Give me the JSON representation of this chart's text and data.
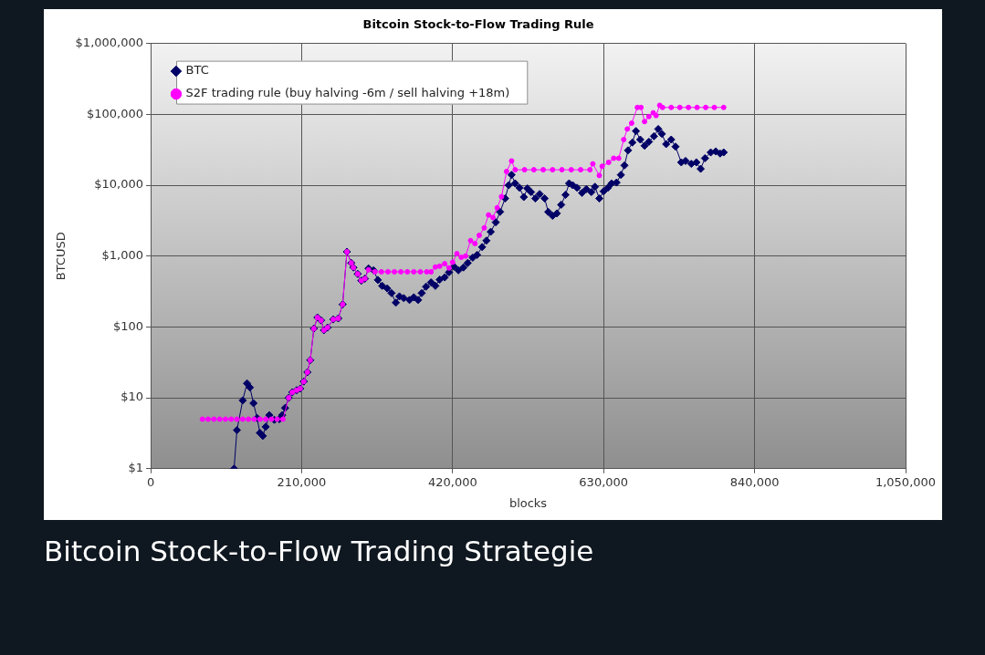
{
  "chart_data": {
    "type": "line",
    "title": "Bitcoin Stock-to-Flow Trading Rule",
    "xlabel": "blocks",
    "ylabel": "BTCUSD",
    "annotations": [
      "Bitcoin Stock-to-Flow Trading Strategie"
    ],
    "log": "y",
    "grid": true,
    "legend": "top left",
    "line_style": "solid",
    "xlim": [
      0,
      1050000
    ],
    "xticks": [
      0,
      {
        "value": 210000,
        "label": "210,000"
      },
      {
        "value": 420000,
        "label": "420,000"
      },
      {
        "value": 630000,
        "label": "630,000"
      },
      {
        "value": 840000,
        "label": "840,000"
      },
      {
        "value": 1050000,
        "label": "1,050,000"
      }
    ],
    "ylim": [
      1,
      1000000
    ],
    "yticks": [
      {
        "value": 1,
        "label": "$1"
      },
      {
        "value": 10,
        "label": "$10"
      },
      {
        "value": 100,
        "label": "$100"
      },
      {
        "value": 1000,
        "label": "$1,000"
      },
      {
        "value": 10000,
        "label": "$10,000"
      },
      {
        "value": 100000,
        "label": "$100,000"
      },
      {
        "value": 1000000,
        "label": "$1,000,000"
      }
    ],
    "series": [
      {
        "name": "BTC",
        "color": "#000066",
        "marker": "diamond",
        "x": [
          116000,
          120000,
          128000,
          134000,
          138000,
          143000,
          148000,
          152000,
          156000,
          160000,
          165000,
          172000,
          179000,
          183000,
          187000,
          192000,
          197000,
          203000,
          208000,
          213000,
          218000,
          222000,
          227000,
          232000,
          237000,
          241000,
          246000,
          254000,
          261000,
          267000,
          273000,
          279000,
          282000,
          288000,
          293000,
          298000,
          303000,
          310000,
          316000,
          322000,
          329000,
          335000,
          341000,
          346000,
          352000,
          360000,
          366000,
          372000,
          377000,
          383000,
          390000,
          396000,
          402000,
          409000,
          415000,
          422000,
          428000,
          435000,
          441000,
          448000,
          454000,
          461000,
          467000,
          473000,
          480000,
          486000,
          493000,
          498000,
          502000,
          507000,
          513000,
          519000,
          524000,
          529000,
          535000,
          541000,
          548000,
          553000,
          559000,
          565000,
          571000,
          577000,
          582000,
          587000,
          593000,
          600000,
          606000,
          613000,
          618000,
          624000,
          630000,
          636000,
          641000,
          648000,
          654000,
          659000,
          664000,
          670000,
          675000,
          681000,
          687000,
          693000,
          700000,
          706000,
          711000,
          717000,
          724000,
          730000,
          738000,
          744000,
          752000,
          759000,
          765000,
          771000,
          779000,
          786000,
          792000,
          797000
        ],
        "values": [
          1,
          3.5,
          9.2,
          16,
          14,
          8.4,
          5.2,
          3.2,
          2.9,
          3.9,
          5.7,
          4.9,
          5,
          5.7,
          7.2,
          10,
          12,
          12.8,
          13.5,
          17,
          23,
          34,
          95,
          136,
          124,
          90,
          98,
          128,
          132,
          208,
          1150,
          800,
          690,
          560,
          450,
          480,
          670,
          630,
          460,
          380,
          350,
          300,
          220,
          270,
          255,
          240,
          262,
          240,
          300,
          370,
          425,
          380,
          465,
          500,
          590,
          710,
          630,
          690,
          800,
          950,
          1040,
          1340,
          1650,
          2200,
          3000,
          4200,
          6500,
          10000,
          14000,
          10600,
          9200,
          6800,
          9000,
          8000,
          6500,
          7500,
          6500,
          4200,
          3700,
          4000,
          5300,
          7300,
          10600,
          10000,
          9200,
          7800,
          8800,
          8000,
          9500,
          6500,
          8200,
          9200,
          10600,
          10900,
          14000,
          19000,
          31000,
          40000,
          58000,
          44000,
          36000,
          41000,
          49000,
          62000,
          53000,
          38000,
          44000,
          35000,
          21000,
          22000,
          20000,
          21000,
          17000,
          24000,
          29000,
          30000,
          28000,
          29000
        ]
      },
      {
        "name": "S2F trading rule (buy halving -6m / sell halving +18m)",
        "color": "#ff00ff",
        "marker": "circle",
        "x": [
          72000,
          80000,
          88000,
          96000,
          104000,
          112000,
          120000,
          128000,
          136000,
          144000,
          152000,
          160000,
          168000,
          176000,
          184000,
          192000,
          197000,
          203000,
          208000,
          213000,
          218000,
          222000,
          227000,
          232000,
          237000,
          241000,
          246000,
          254000,
          261000,
          267000,
          273000,
          279000,
          282000,
          288000,
          293000,
          298000,
          303000,
          312000,
          321000,
          330000,
          339000,
          348000,
          357000,
          366000,
          375000,
          384000,
          390000,
          396000,
          402000,
          409000,
          415000,
          420000,
          426000,
          432000,
          438000,
          445000,
          451000,
          457000,
          464000,
          470000,
          476000,
          482000,
          488000,
          495000,
          502000,
          507000,
          520000,
          533000,
          546000,
          559000,
          572000,
          585000,
          598000,
          611000,
          615000,
          624000,
          628000,
          637000,
          644000,
          651000,
          658000,
          663000,
          669000,
          677000,
          682000,
          687000,
          693000,
          699000,
          703000,
          708000,
          712000,
          724000,
          736000,
          748000,
          760000,
          772000,
          784000,
          797000
        ],
        "values": [
          5,
          5,
          5,
          5,
          5,
          5,
          5,
          5,
          5,
          5,
          5,
          5,
          5,
          5,
          5,
          10,
          12,
          12.8,
          13.5,
          17,
          23,
          34,
          95,
          136,
          124,
          90,
          98,
          128,
          132,
          208,
          1150,
          800,
          690,
          560,
          450,
          480,
          640,
          600,
          600,
          600,
          600,
          600,
          600,
          600,
          600,
          600,
          600,
          700,
          720,
          780,
          680,
          820,
          1080,
          960,
          1000,
          1650,
          1500,
          1960,
          2500,
          3800,
          3500,
          4800,
          6900,
          15600,
          22000,
          16500,
          16500,
          16500,
          16500,
          16500,
          16500,
          16500,
          16500,
          16500,
          20000,
          13700,
          18500,
          21000,
          24000,
          24000,
          44000,
          62000,
          75000,
          125000,
          125000,
          79000,
          93000,
          105000,
          96000,
          134000,
          125000,
          125000,
          125000,
          125000,
          125000,
          125000,
          125000,
          125000
        ]
      }
    ]
  }
}
